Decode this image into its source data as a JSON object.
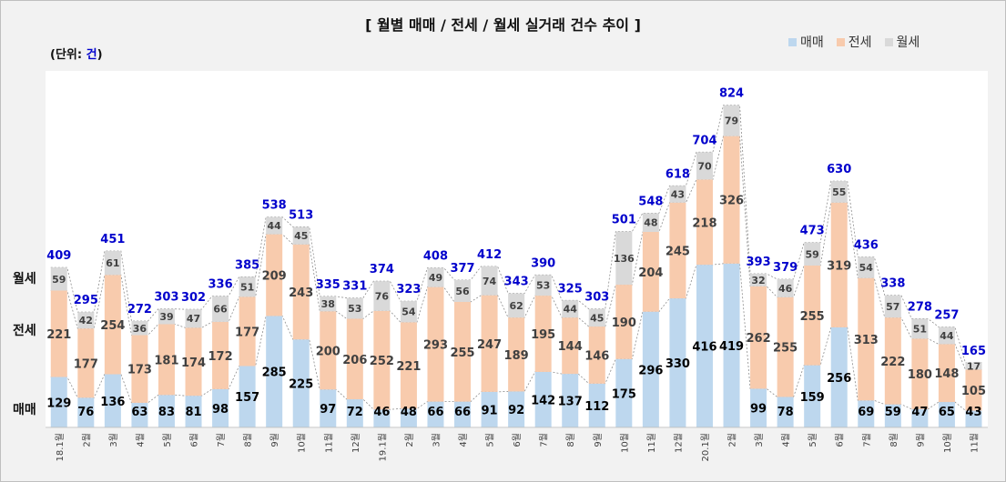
{
  "chart_data": {
    "type": "bar",
    "stacked": true,
    "title": "[ 월별 매매 / 전세 / 월세 실거래 건수 추이 ]",
    "unit_label": {
      "prefix": "(단위: ",
      "unit": "건",
      "suffix": ")"
    },
    "categories": [
      "18.1",
      "2",
      "3",
      "4",
      "5",
      "6",
      "7",
      "8",
      "9",
      "10",
      "11",
      "12",
      "19.1",
      "2",
      "3",
      "4",
      "5",
      "6",
      "7",
      "8",
      "9",
      "10",
      "11",
      "12",
      "20.1",
      "2",
      "3",
      "4",
      "5",
      "6",
      "7",
      "8",
      "9",
      "10",
      "11"
    ],
    "x_suffix": "월",
    "series": [
      {
        "name": "매매",
        "color": "#bdd7ee",
        "values": [
          129,
          76,
          136,
          63,
          83,
          81,
          98,
          157,
          285,
          225,
          97,
          72,
          46,
          48,
          66,
          66,
          91,
          92,
          142,
          137,
          112,
          175,
          296,
          330,
          416,
          419,
          99,
          78,
          159,
          256,
          69,
          59,
          47,
          65,
          43
        ]
      },
      {
        "name": "전세",
        "color": "#f8cbad",
        "values": [
          221,
          177,
          254,
          173,
          181,
          174,
          172,
          177,
          209,
          243,
          200,
          206,
          252,
          221,
          293,
          255,
          247,
          189,
          195,
          144,
          146,
          190,
          204,
          245,
          218,
          326,
          262,
          255,
          255,
          319,
          313,
          222,
          180,
          148,
          105
        ]
      },
      {
        "name": "월세",
        "color": "#d9d9d9",
        "values": [
          59,
          42,
          61,
          36,
          39,
          47,
          66,
          51,
          44,
          45,
          38,
          53,
          76,
          54,
          49,
          56,
          74,
          62,
          53,
          44,
          45,
          136,
          48,
          43,
          70,
          79,
          32,
          46,
          59,
          55,
          54,
          57,
          51,
          44,
          17
        ]
      }
    ],
    "totals": [
      409,
      295,
      451,
      272,
      303,
      302,
      336,
      385,
      538,
      513,
      335,
      331,
      374,
      323,
      408,
      377,
      412,
      343,
      390,
      325,
      303,
      501,
      548,
      618,
      704,
      824,
      393,
      379,
      473,
      630,
      436,
      338,
      278,
      257,
      165
    ],
    "side_labels": [
      "월세",
      "전세",
      "매매"
    ],
    "legend": [
      "매매",
      "전세",
      "월세"
    ],
    "legend_position": "top-right",
    "total_color": "#0000cc",
    "grid": false
  }
}
